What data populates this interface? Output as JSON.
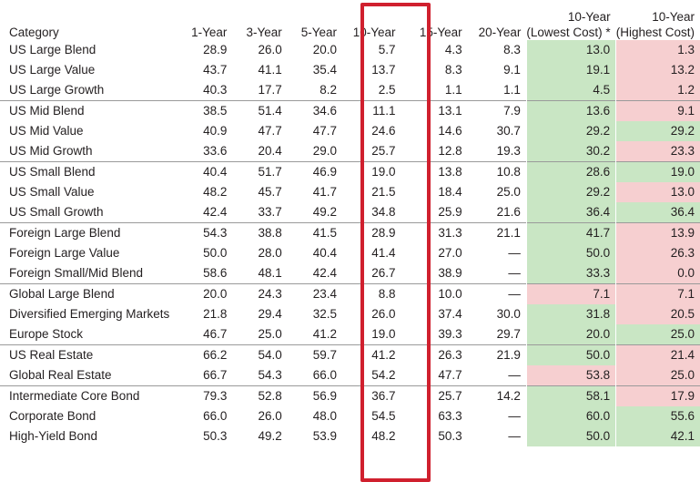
{
  "headers": {
    "category": "Category",
    "y1": "1-Year",
    "y3": "3-Year",
    "y5": "5-Year",
    "y10": "10-Year",
    "y15": "15-Year",
    "y20": "20-Year",
    "low_line1": "10-Year",
    "low_line2": "(Lowest Cost) *",
    "high_line1": "10-Year",
    "high_line2": "(Highest Cost)"
  },
  "colors": {
    "good": "#c9e6c4",
    "bad": "#f6cfd0",
    "highlight": "#d0202e"
  },
  "rows": [
    {
      "category": "US Large Blend",
      "y1": "28.9",
      "y3": "26.0",
      "y5": "20.0",
      "y10": "5.7",
      "y15": "4.3",
      "y20": "8.3",
      "low": "13.0",
      "high": "1.3",
      "low_status": "good",
      "high_status": "bad",
      "group_start": true
    },
    {
      "category": "US Large Value",
      "y1": "43.7",
      "y3": "41.1",
      "y5": "35.4",
      "y10": "13.7",
      "y15": "8.3",
      "y20": "9.1",
      "low": "19.1",
      "high": "13.2",
      "low_status": "good",
      "high_status": "bad",
      "group_start": false
    },
    {
      "category": "US Large Growth",
      "y1": "40.3",
      "y3": "17.7",
      "y5": "8.2",
      "y10": "2.5",
      "y15": "1.1",
      "y20": "1.1",
      "low": "4.5",
      "high": "1.2",
      "low_status": "good",
      "high_status": "bad",
      "group_start": false
    },
    {
      "category": "US Mid Blend",
      "y1": "38.5",
      "y3": "51.4",
      "y5": "34.6",
      "y10": "11.1",
      "y15": "13.1",
      "y20": "7.9",
      "low": "13.6",
      "high": "9.1",
      "low_status": "good",
      "high_status": "bad",
      "group_start": true
    },
    {
      "category": "US Mid Value",
      "y1": "40.9",
      "y3": "47.7",
      "y5": "47.7",
      "y10": "24.6",
      "y15": "14.6",
      "y20": "30.7",
      "low": "29.2",
      "high": "29.2",
      "low_status": "good",
      "high_status": "good",
      "group_start": false
    },
    {
      "category": "US Mid Growth",
      "y1": "33.6",
      "y3": "20.4",
      "y5": "29.0",
      "y10": "25.7",
      "y15": "12.8",
      "y20": "19.3",
      "low": "30.2",
      "high": "23.3",
      "low_status": "good",
      "high_status": "bad",
      "group_start": false
    },
    {
      "category": "US Small Blend",
      "y1": "40.4",
      "y3": "51.7",
      "y5": "46.9",
      "y10": "19.0",
      "y15": "13.8",
      "y20": "10.8",
      "low": "28.6",
      "high": "19.0",
      "low_status": "good",
      "high_status": "good",
      "group_start": true
    },
    {
      "category": "US Small Value",
      "y1": "48.2",
      "y3": "45.7",
      "y5": "41.7",
      "y10": "21.5",
      "y15": "18.4",
      "y20": "25.0",
      "low": "29.2",
      "high": "13.0",
      "low_status": "good",
      "high_status": "bad",
      "group_start": false
    },
    {
      "category": "US Small Growth",
      "y1": "42.4",
      "y3": "33.7",
      "y5": "49.2",
      "y10": "34.8",
      "y15": "25.9",
      "y20": "21.6",
      "low": "36.4",
      "high": "36.4",
      "low_status": "good",
      "high_status": "good",
      "group_start": false
    },
    {
      "category": "Foreign Large Blend",
      "y1": "54.3",
      "y3": "38.8",
      "y5": "41.5",
      "y10": "28.9",
      "y15": "31.3",
      "y20": "21.1",
      "low": "41.7",
      "high": "13.9",
      "low_status": "good",
      "high_status": "bad",
      "group_start": true
    },
    {
      "category": "Foreign Large Value",
      "y1": "50.0",
      "y3": "28.0",
      "y5": "40.4",
      "y10": "41.4",
      "y15": "27.0",
      "y20": "—",
      "low": "50.0",
      "high": "26.3",
      "low_status": "good",
      "high_status": "bad",
      "group_start": false
    },
    {
      "category": "Foreign Small/Mid Blend",
      "y1": "58.6",
      "y3": "48.1",
      "y5": "42.4",
      "y10": "26.7",
      "y15": "38.9",
      "y20": "—",
      "low": "33.3",
      "high": "0.0",
      "low_status": "good",
      "high_status": "bad",
      "group_start": false
    },
    {
      "category": "Global Large Blend",
      "y1": "20.0",
      "y3": "24.3",
      "y5": "23.4",
      "y10": "8.8",
      "y15": "10.0",
      "y20": "—",
      "low": "7.1",
      "high": "7.1",
      "low_status": "bad",
      "high_status": "bad",
      "group_start": true
    },
    {
      "category": "Diversified Emerging Markets",
      "y1": "21.8",
      "y3": "29.4",
      "y5": "32.5",
      "y10": "26.0",
      "y15": "37.4",
      "y20": "30.0",
      "low": "31.8",
      "high": "20.5",
      "low_status": "good",
      "high_status": "bad",
      "group_start": false
    },
    {
      "category": "Europe Stock",
      "y1": "46.7",
      "y3": "25.0",
      "y5": "41.2",
      "y10": "19.0",
      "y15": "39.3",
      "y20": "29.7",
      "low": "20.0",
      "high": "25.0",
      "low_status": "good",
      "high_status": "good",
      "group_start": false
    },
    {
      "category": "US Real Estate",
      "y1": "66.2",
      "y3": "54.0",
      "y5": "59.7",
      "y10": "41.2",
      "y15": "26.3",
      "y20": "21.9",
      "low": "50.0",
      "high": "21.4",
      "low_status": "good",
      "high_status": "bad",
      "group_start": true
    },
    {
      "category": "Global Real Estate",
      "y1": "66.7",
      "y3": "54.3",
      "y5": "66.0",
      "y10": "54.2",
      "y15": "47.7",
      "y20": "—",
      "low": "53.8",
      "high": "25.0",
      "low_status": "bad",
      "high_status": "bad",
      "group_start": false
    },
    {
      "category": "Intermediate Core Bond",
      "y1": "79.3",
      "y3": "52.8",
      "y5": "56.9",
      "y10": "36.7",
      "y15": "25.7",
      "y20": "14.2",
      "low": "58.1",
      "high": "17.9",
      "low_status": "good",
      "high_status": "bad",
      "group_start": true
    },
    {
      "category": "Corporate Bond",
      "y1": "66.0",
      "y3": "26.0",
      "y5": "48.0",
      "y10": "54.5",
      "y15": "63.3",
      "y20": "—",
      "low": "60.0",
      "high": "55.6",
      "low_status": "good",
      "high_status": "good",
      "group_start": false
    },
    {
      "category": "High-Yield Bond",
      "y1": "50.3",
      "y3": "49.2",
      "y5": "53.9",
      "y10": "48.2",
      "y15": "50.3",
      "y20": "—",
      "low": "50.0",
      "high": "42.1",
      "low_status": "good",
      "high_status": "good",
      "group_start": false
    }
  ]
}
